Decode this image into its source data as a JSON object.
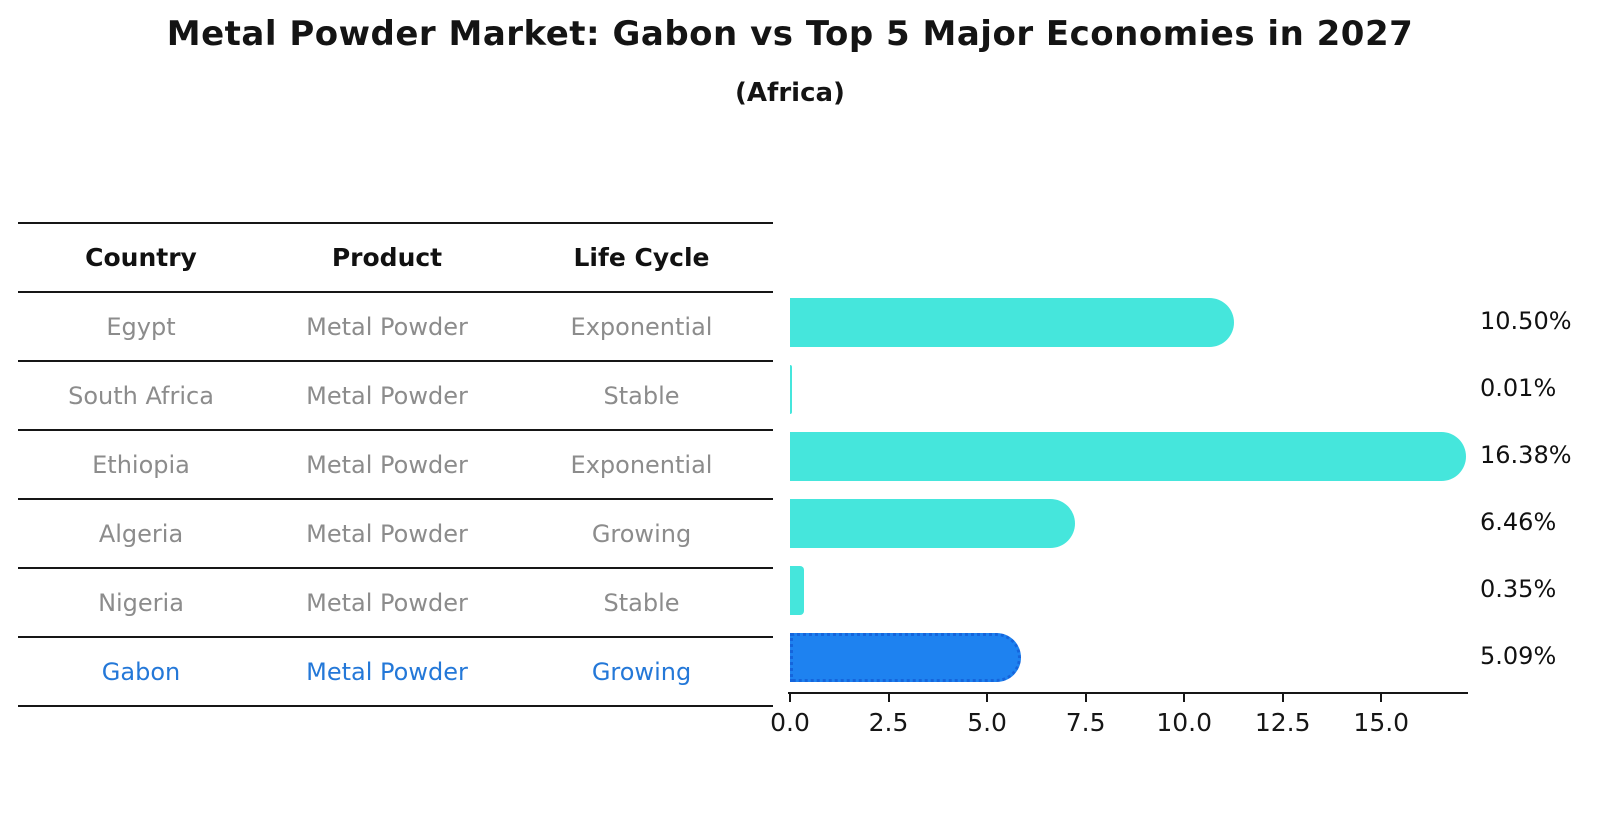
{
  "title": "Metal Powder Market: Gabon vs Top 5 Major Economies in 2027",
  "subtitle": "(Africa)",
  "table": {
    "headers": [
      "Country",
      "Product",
      "Life Cycle"
    ],
    "rows": [
      {
        "country": "Egypt",
        "product": "Metal Powder",
        "life_cycle": "Exponential",
        "highlight": false
      },
      {
        "country": "South Africa",
        "product": "Metal Powder",
        "life_cycle": "Stable",
        "highlight": false
      },
      {
        "country": "Ethiopia",
        "product": "Metal Powder",
        "life_cycle": "Exponential",
        "highlight": false
      },
      {
        "country": "Algeria",
        "product": "Metal Powder",
        "life_cycle": "Growing",
        "highlight": false
      },
      {
        "country": "Nigeria",
        "product": "Metal Powder",
        "life_cycle": "Stable",
        "highlight": false
      },
      {
        "country": "Gabon",
        "product": "Metal Powder",
        "life_cycle": "Growing",
        "highlight": true
      }
    ]
  },
  "chart_data": {
    "type": "bar",
    "orientation": "horizontal",
    "title": "Metal Powder Market: Gabon vs Top 5 Major Economies in 2027",
    "subtitle": "(Africa)",
    "categories": [
      "Egypt",
      "South Africa",
      "Ethiopia",
      "Algeria",
      "Nigeria",
      "Gabon"
    ],
    "values": [
      10.5,
      0.01,
      16.38,
      6.46,
      0.35,
      5.09
    ],
    "value_labels": [
      "10.50%",
      "0.01%",
      "16.38%",
      "6.46%",
      "0.35%",
      "5.09%"
    ],
    "x_ticks": [
      0.0,
      2.5,
      5.0,
      7.5,
      10.0,
      12.5,
      15.0
    ],
    "x_tick_labels": [
      "0.0",
      "2.5",
      "5.0",
      "7.5",
      "10.0",
      "12.5",
      "15.0"
    ],
    "xlim": [
      0,
      17.2
    ],
    "grid": false,
    "legend": false,
    "highlight_index": 5,
    "bar_color": "#45e6dc",
    "highlight_bar_color": "#1e82f0",
    "highlight_border_color": "#1565dc",
    "highlight_text_color": "#2478d8",
    "muted_text_color": "#8c8c8c"
  }
}
